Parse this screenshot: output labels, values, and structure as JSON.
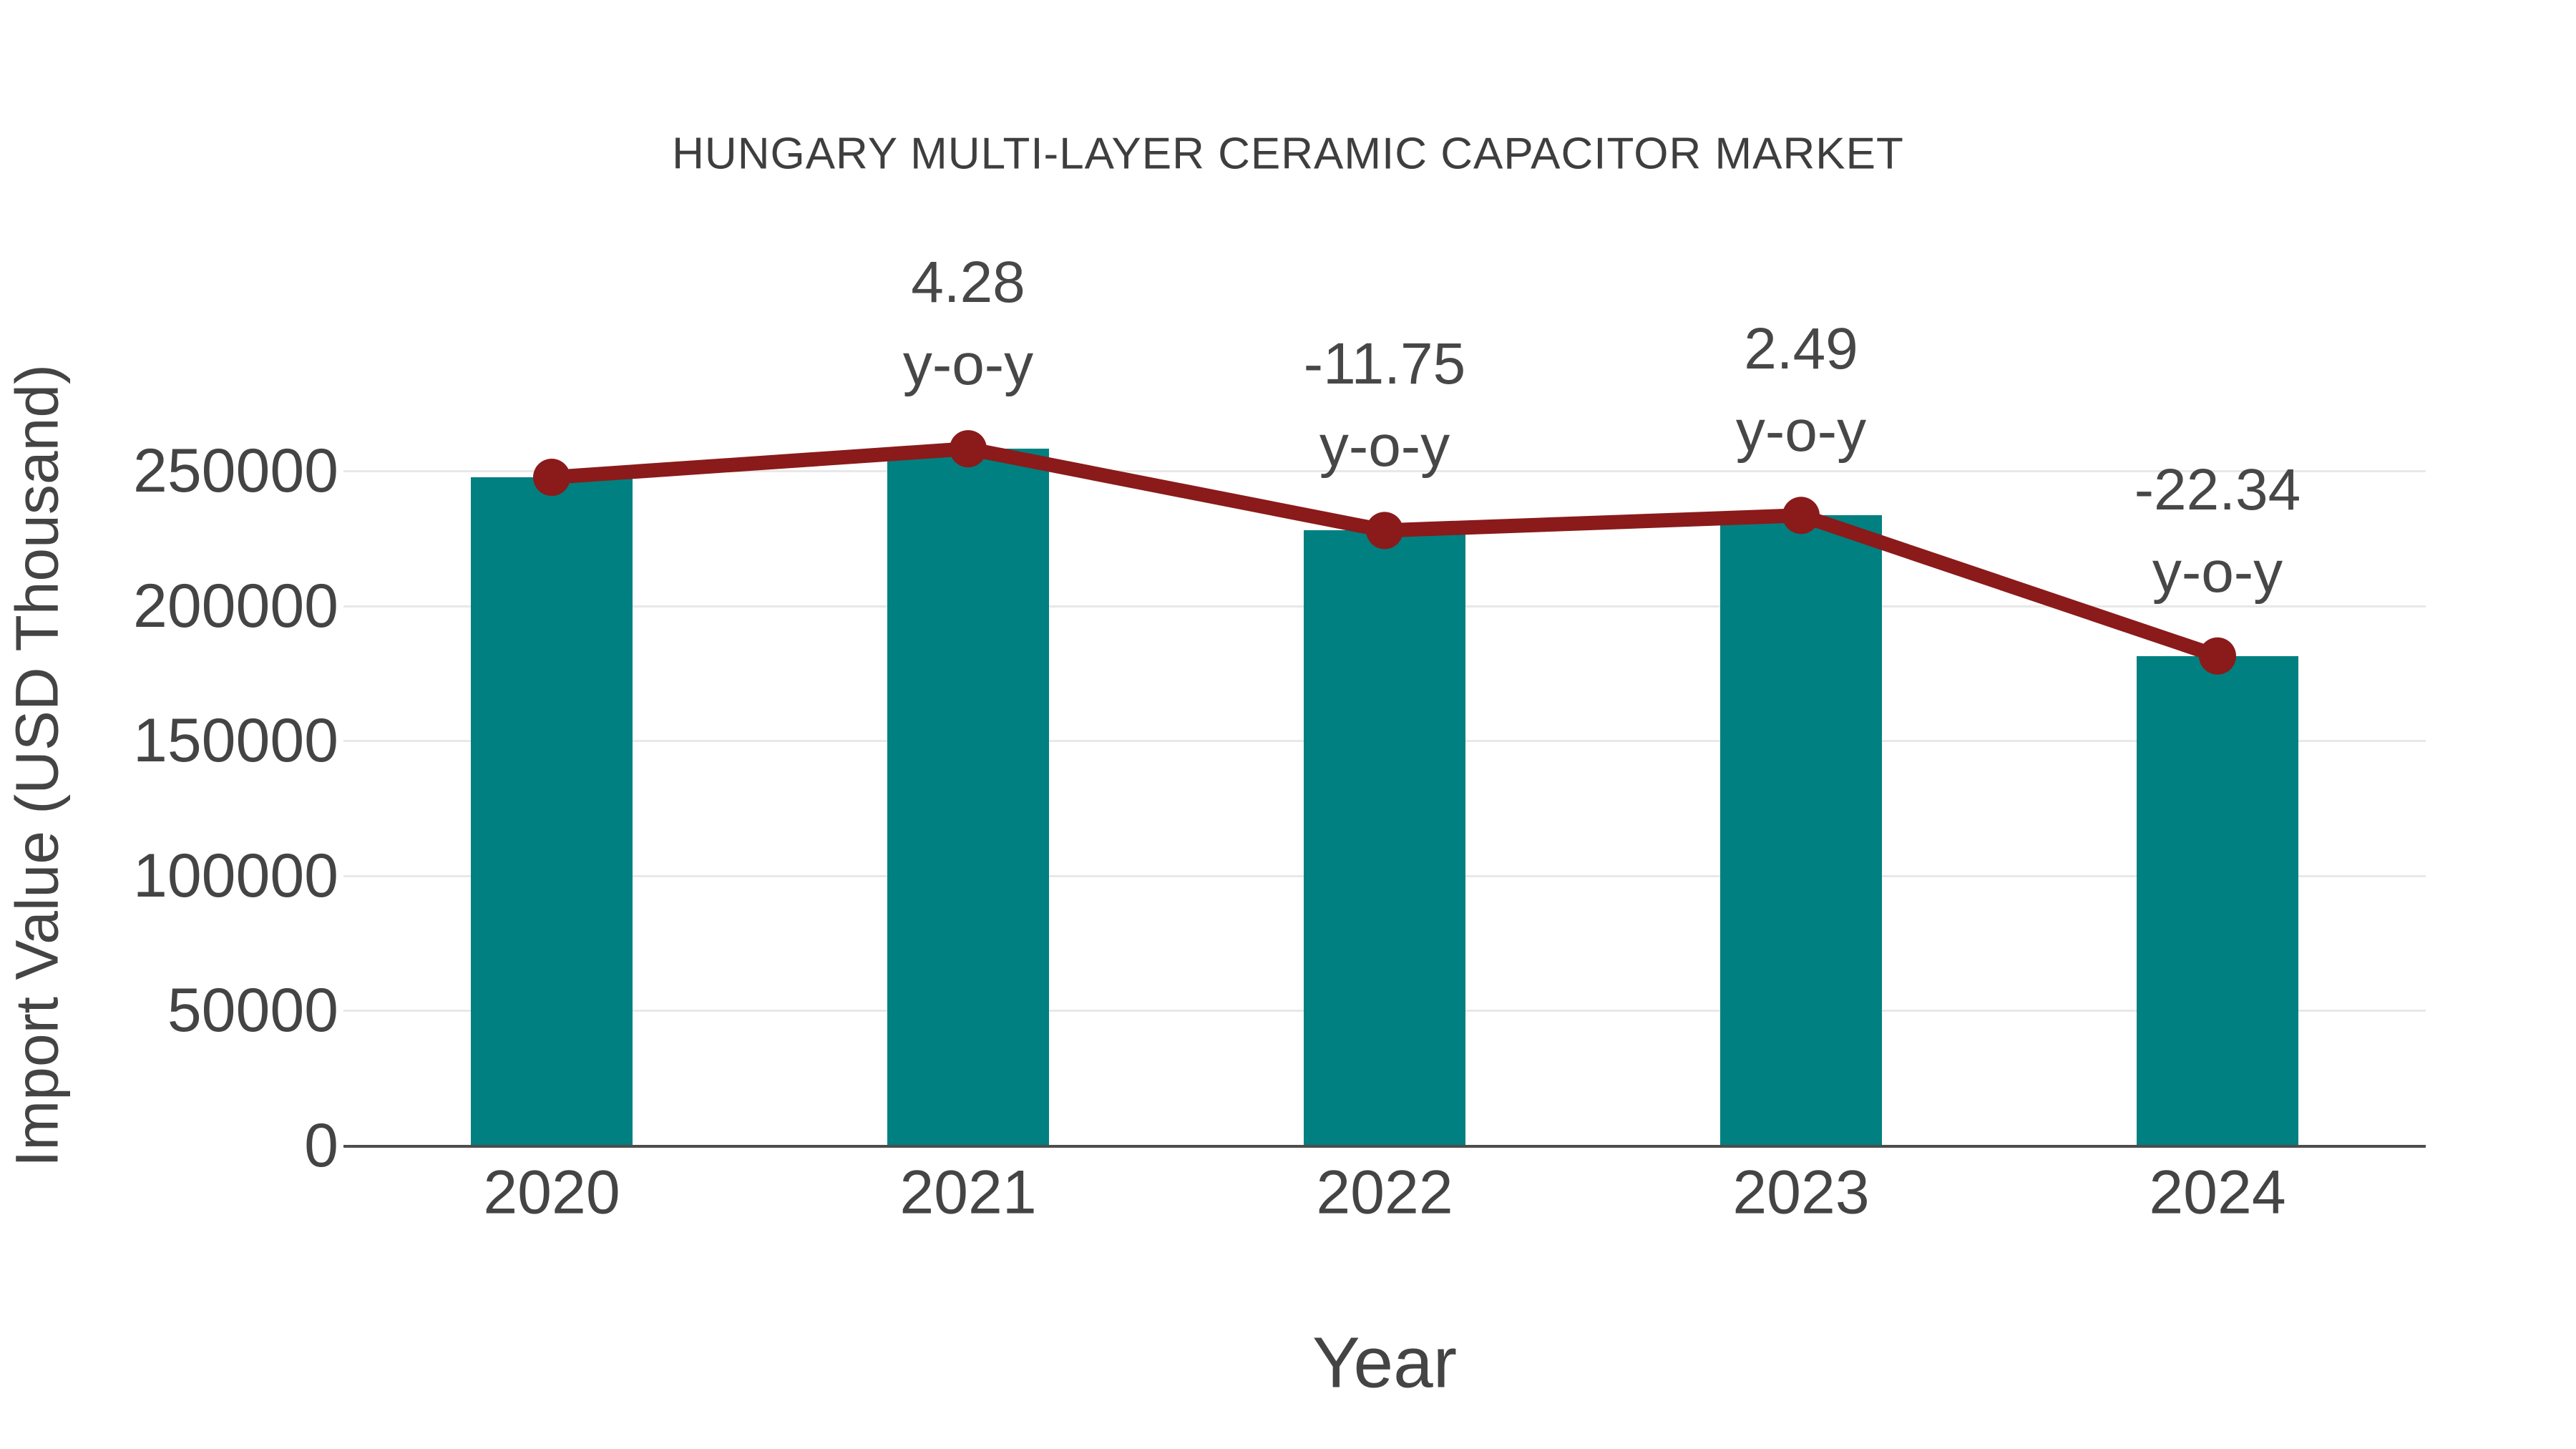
{
  "chart_data": {
    "type": "bar",
    "title": "HUNGARY MULTI-LAYER CERAMIC CAPACITOR MARKET",
    "xlabel": "Year",
    "ylabel": "Import Value (USD Thousand)",
    "categories": [
      "2020",
      "2021",
      "2022",
      "2023",
      "2024"
    ],
    "values": [
      247600,
      258200,
      227900,
      233500,
      181400
    ],
    "line_overlay": true,
    "yoy": [
      null,
      "4.28",
      "-11.75",
      "2.49",
      "-22.34"
    ],
    "yoy_label": "y-o-y",
    "yticks": [
      0,
      50000,
      100000,
      150000,
      200000,
      250000
    ],
    "ylim": [
      0,
      265000
    ],
    "grid": true,
    "legend": "none",
    "colors": {
      "bar": "#008080",
      "line": "#8B1A1A",
      "marker": "#8B1A1A",
      "text": "#444444",
      "title_text": "#3e3e3e",
      "gridline": "#e8e8e8",
      "axis_line": "#4d4d4d",
      "background": "#ffffff"
    }
  }
}
